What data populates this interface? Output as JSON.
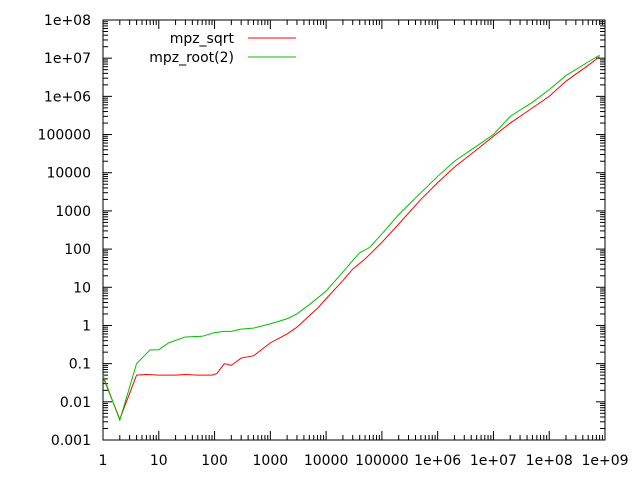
{
  "chart_data": {
    "type": "line",
    "title": "",
    "xlabel": "",
    "ylabel": "",
    "xscale": "log",
    "yscale": "log",
    "xlim": [
      1,
      1000000000
    ],
    "ylim": [
      0.001,
      100000000
    ],
    "grid": false,
    "legend_position": "top-left",
    "x_ticks": [
      {
        "value": 1,
        "label": "1"
      },
      {
        "value": 10,
        "label": "10"
      },
      {
        "value": 100,
        "label": "100"
      },
      {
        "value": 1000,
        "label": "1000"
      },
      {
        "value": 10000,
        "label": "10000"
      },
      {
        "value": 100000,
        "label": "100000"
      },
      {
        "value": 1000000,
        "label": "1e+06"
      },
      {
        "value": 10000000,
        "label": "1e+07"
      },
      {
        "value": 100000000,
        "label": "1e+08"
      },
      {
        "value": 1000000000,
        "label": "1e+09"
      }
    ],
    "y_ticks": [
      {
        "value": 0.001,
        "label": "0.001"
      },
      {
        "value": 0.01,
        "label": "0.01"
      },
      {
        "value": 0.1,
        "label": "0.1"
      },
      {
        "value": 1,
        "label": "1"
      },
      {
        "value": 10,
        "label": "10"
      },
      {
        "value": 100,
        "label": "100"
      },
      {
        "value": 1000,
        "label": "1000"
      },
      {
        "value": 10000,
        "label": "10000"
      },
      {
        "value": 100000,
        "label": "100000"
      },
      {
        "value": 1000000,
        "label": "1e+06"
      },
      {
        "value": 10000000,
        "label": "1e+07"
      },
      {
        "value": 100000000,
        "label": "1e+08"
      }
    ],
    "series": [
      {
        "name": "mpz_sqrt",
        "color": "#ff0000",
        "points": [
          [
            1,
            0.045
          ],
          [
            2,
            0.0035
          ],
          [
            4,
            0.05
          ],
          [
            6,
            0.052
          ],
          [
            10,
            0.05
          ],
          [
            20,
            0.05
          ],
          [
            30,
            0.052
          ],
          [
            50,
            0.05
          ],
          [
            90,
            0.05
          ],
          [
            110,
            0.055
          ],
          [
            150,
            0.1
          ],
          [
            200,
            0.09
          ],
          [
            300,
            0.14
          ],
          [
            500,
            0.16
          ],
          [
            1000,
            0.35
          ],
          [
            2000,
            0.6
          ],
          [
            3000,
            0.9
          ],
          [
            5000,
            1.8
          ],
          [
            7000,
            2.8
          ],
          [
            10000,
            5
          ],
          [
            20000,
            15
          ],
          [
            30000,
            30
          ],
          [
            50000,
            55
          ],
          [
            100000,
            150
          ],
          [
            200000,
            450
          ],
          [
            500000,
            2000
          ],
          [
            1000000,
            5500
          ],
          [
            2000000,
            14000
          ],
          [
            5000000,
            40000
          ],
          [
            10000000,
            90000
          ],
          [
            20000000,
            200000
          ],
          [
            50000000,
            500000
          ],
          [
            100000000,
            1000000
          ],
          [
            200000000,
            2500000
          ],
          [
            500000000,
            6500000
          ],
          [
            800000000,
            11000000
          ]
        ]
      },
      {
        "name": "mpz_root(2)",
        "color": "#00c000",
        "points": [
          [
            1,
            0.05
          ],
          [
            2,
            0.0033
          ],
          [
            4,
            0.1
          ],
          [
            7,
            0.23
          ],
          [
            10,
            0.23
          ],
          [
            15,
            0.35
          ],
          [
            30,
            0.5
          ],
          [
            60,
            0.52
          ],
          [
            100,
            0.65
          ],
          [
            150,
            0.7
          ],
          [
            200,
            0.7
          ],
          [
            300,
            0.8
          ],
          [
            500,
            0.85
          ],
          [
            1000,
            1.1
          ],
          [
            2000,
            1.5
          ],
          [
            3000,
            2
          ],
          [
            5000,
            3.5
          ],
          [
            10000,
            8
          ],
          [
            20000,
            25
          ],
          [
            30000,
            50
          ],
          [
            40000,
            80
          ],
          [
            60000,
            110
          ],
          [
            100000,
            250
          ],
          [
            200000,
            800
          ],
          [
            500000,
            3000
          ],
          [
            1000000,
            8000
          ],
          [
            2000000,
            20000
          ],
          [
            5000000,
            50000
          ],
          [
            10000000,
            100000
          ],
          [
            20000000,
            300000
          ],
          [
            50000000,
            700000
          ],
          [
            100000000,
            1500000
          ],
          [
            200000000,
            3500000
          ],
          [
            500000000,
            8000000
          ],
          [
            800000000,
            12000000
          ]
        ]
      }
    ]
  }
}
